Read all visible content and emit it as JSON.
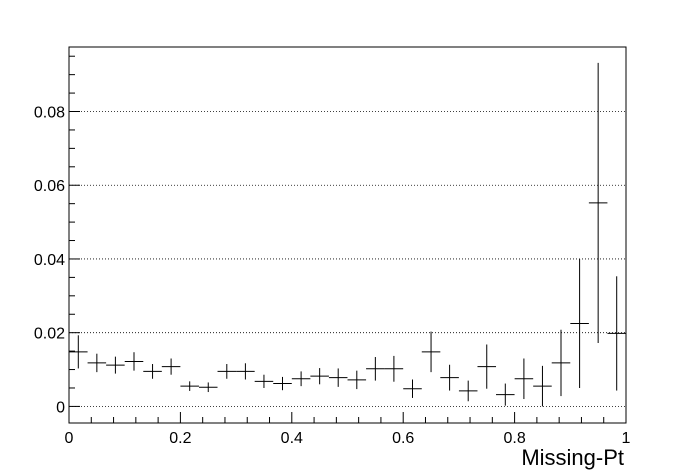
{
  "chart_data": {
    "type": "scatter",
    "title": "",
    "xlabel": "Missing-Pt",
    "ylabel": "",
    "xlim": [
      0,
      1
    ],
    "ylim": [
      -0.0045,
      0.0975
    ],
    "grid": {
      "x": false,
      "y": true
    },
    "x_ticks": [
      {
        "value": 0,
        "label": "0"
      },
      {
        "value": 0.2,
        "label": "0.2"
      },
      {
        "value": 0.4,
        "label": "0.4"
      },
      {
        "value": 0.6,
        "label": "0.6"
      },
      {
        "value": 0.8,
        "label": "0.8"
      },
      {
        "value": 1,
        "label": "1"
      }
    ],
    "y_ticks": [
      {
        "value": 0,
        "label": "0"
      },
      {
        "value": 0.02,
        "label": "0.02"
      },
      {
        "value": 0.04,
        "label": "0.04"
      },
      {
        "value": 0.06,
        "label": "0.06"
      },
      {
        "value": 0.08,
        "label": "0.08"
      }
    ],
    "bin_width": 0.0333,
    "points": [
      {
        "x": 0.0167,
        "y": 0.0148,
        "err": 0.0045
      },
      {
        "x": 0.05,
        "y": 0.0118,
        "err": 0.0025
      },
      {
        "x": 0.0833,
        "y": 0.0112,
        "err": 0.0023
      },
      {
        "x": 0.1167,
        "y": 0.0122,
        "err": 0.0025
      },
      {
        "x": 0.15,
        "y": 0.0095,
        "err": 0.002
      },
      {
        "x": 0.1833,
        "y": 0.0108,
        "err": 0.0022
      },
      {
        "x": 0.2167,
        "y": 0.0055,
        "err": 0.0013
      },
      {
        "x": 0.25,
        "y": 0.0052,
        "err": 0.0013
      },
      {
        "x": 0.2833,
        "y": 0.0095,
        "err": 0.002
      },
      {
        "x": 0.3167,
        "y": 0.0095,
        "err": 0.0022
      },
      {
        "x": 0.35,
        "y": 0.0068,
        "err": 0.0018
      },
      {
        "x": 0.3833,
        "y": 0.0062,
        "err": 0.0018
      },
      {
        "x": 0.4167,
        "y": 0.0075,
        "err": 0.002
      },
      {
        "x": 0.45,
        "y": 0.0082,
        "err": 0.0022
      },
      {
        "x": 0.4833,
        "y": 0.0078,
        "err": 0.0025
      },
      {
        "x": 0.5167,
        "y": 0.0072,
        "err": 0.0025
      },
      {
        "x": 0.55,
        "y": 0.0102,
        "err": 0.0032
      },
      {
        "x": 0.5833,
        "y": 0.0102,
        "err": 0.0035
      },
      {
        "x": 0.6167,
        "y": 0.0048,
        "err": 0.0025
      },
      {
        "x": 0.65,
        "y": 0.0148,
        "err": 0.0055
      },
      {
        "x": 0.6833,
        "y": 0.0078,
        "err": 0.0035
      },
      {
        "x": 0.7167,
        "y": 0.0042,
        "err": 0.0028
      },
      {
        "x": 0.75,
        "y": 0.0108,
        "err": 0.006
      },
      {
        "x": 0.7833,
        "y": 0.0032,
        "err": 0.003
      },
      {
        "x": 0.8167,
        "y": 0.0075,
        "err": 0.0055
      },
      {
        "x": 0.85,
        "y": 0.0055,
        "err": 0.0055
      },
      {
        "x": 0.8833,
        "y": 0.0118,
        "err": 0.009
      },
      {
        "x": 0.9167,
        "y": 0.0225,
        "err": 0.0175
      },
      {
        "x": 0.95,
        "y": 0.0552,
        "err": 0.038
      },
      {
        "x": 0.9833,
        "y": 0.0198,
        "err": 0.0155
      }
    ]
  }
}
